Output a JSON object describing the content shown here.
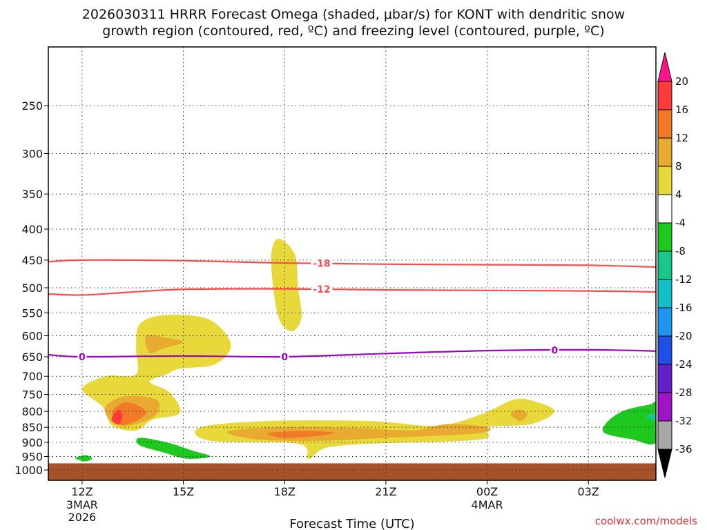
{
  "chart_data": {
    "type": "heatmap",
    "title_line1": "2026030311 HRRR Forecast Omega (shaded, μbar/s) for KONT with dendritic snow",
    "title_line2": "growth region (contoured, red, ºC) and freezing level (contoured, purple, ºC)",
    "xlabel": "Forecast Time (UTC)",
    "credit": "coolwx.com/models",
    "x_ticks": [
      {
        "hour": 0,
        "label": "12Z",
        "sub1": "3MAR",
        "sub2": "2026"
      },
      {
        "hour": 3,
        "label": "15Z",
        "sub1": "",
        "sub2": ""
      },
      {
        "hour": 6,
        "label": "18Z",
        "sub1": "",
        "sub2": ""
      },
      {
        "hour": 9,
        "label": "21Z",
        "sub1": "",
        "sub2": ""
      },
      {
        "hour": 12,
        "label": "00Z",
        "sub1": "4MAR",
        "sub2": ""
      },
      {
        "hour": 15,
        "label": "03Z",
        "sub1": "",
        "sub2": ""
      }
    ],
    "x_range_hours": [
      -1,
      17
    ],
    "y_ticks": [
      250,
      300,
      350,
      400,
      450,
      500,
      550,
      600,
      650,
      700,
      750,
      800,
      850,
      900,
      950,
      1000
    ],
    "y_range_hpa": [
      200,
      1040
    ],
    "y_scale": "log-pressure",
    "grid": true,
    "ground_from_hpa": 975,
    "colorbar": {
      "placement": "right",
      "labels": [
        "20",
        "16",
        "12",
        "8",
        "4",
        "-4",
        "-8",
        "-12",
        "-16",
        "-20",
        "-24",
        "-28",
        "-32",
        "-36"
      ],
      "colors": [
        "#ff3a3a",
        "#f07a26",
        "#e8aa30",
        "#e8d83a",
        "#ffffff",
        "#1ec81e",
        "#18c88a",
        "#14c0c8",
        "#1e96f0",
        "#1e50e6",
        "#6420c8",
        "#a014c8",
        "#a8a8a8"
      ],
      "top_arrow_color": "#ff148c",
      "bottom_arrow_color": "#000000"
    },
    "omega_regions": [
      {
        "level": 4,
        "color": "#e8d83a",
        "points": [
          [
            5.6,
            450
          ],
          [
            5.8,
            415
          ],
          [
            6.3,
            440
          ],
          [
            6.4,
            500
          ],
          [
            6.5,
            560
          ],
          [
            6.2,
            590
          ],
          [
            5.8,
            555
          ]
        ]
      },
      {
        "level": 4,
        "color": "#e8d83a",
        "points": [
          [
            1.7,
            575
          ],
          [
            2.4,
            555
          ],
          [
            3.6,
            560
          ],
          [
            4.2,
            590
          ],
          [
            4.4,
            630
          ],
          [
            3.9,
            670
          ],
          [
            2.9,
            680
          ],
          [
            2.5,
            695
          ],
          [
            2.0,
            715
          ],
          [
            2.6,
            745
          ],
          [
            2.9,
            805
          ],
          [
            2.1,
            825
          ],
          [
            1.6,
            860
          ],
          [
            0.9,
            845
          ],
          [
            0.6,
            785
          ],
          [
            0,
            735
          ],
          [
            0.7,
            700
          ],
          [
            1.6,
            695
          ],
          [
            1.6,
            630
          ]
        ]
      },
      {
        "level": 8,
        "color": "#e8aa30",
        "points": [
          [
            1.9,
            600
          ],
          [
            2.5,
            605
          ],
          [
            3.0,
            615
          ],
          [
            2.4,
            630
          ],
          [
            2.0,
            640
          ]
        ]
      },
      {
        "level": 8,
        "color": "#e8aa30",
        "points": [
          [
            0.7,
            785
          ],
          [
            1.3,
            755
          ],
          [
            2.2,
            765
          ],
          [
            2.2,
            810
          ],
          [
            1.6,
            840
          ],
          [
            1.1,
            845
          ],
          [
            0.8,
            825
          ]
        ]
      },
      {
        "level": 12,
        "color": "#f07a26",
        "points": [
          [
            0.9,
            805
          ],
          [
            1.2,
            775
          ],
          [
            1.6,
            780
          ],
          [
            1.9,
            805
          ],
          [
            1.5,
            835
          ],
          [
            1.1,
            840
          ]
        ]
      },
      {
        "level": 16,
        "color": "#ff3a3a",
        "points": [
          [
            0.9,
            815
          ],
          [
            1.1,
            795
          ],
          [
            1.2,
            815
          ],
          [
            1.1,
            840
          ],
          [
            0.9,
            830
          ]
        ]
      },
      {
        "level": 4,
        "color": "#e8d83a",
        "points": [
          [
            3.5,
            850
          ],
          [
            5.5,
            830
          ],
          [
            8.5,
            830
          ],
          [
            10.5,
            845
          ],
          [
            11.8,
            810
          ],
          [
            12.8,
            765
          ],
          [
            13.4,
            770
          ],
          [
            14,
            800
          ],
          [
            13.3,
            840
          ],
          [
            12.0,
            850
          ],
          [
            11.8,
            890
          ],
          [
            8.5,
            905
          ],
          [
            7.2,
            920
          ],
          [
            6.7,
            960
          ],
          [
            6.4,
            905
          ],
          [
            3.8,
            895
          ]
        ]
      },
      {
        "level": 8,
        "color": "#e8aa30",
        "points": [
          [
            4.3,
            865
          ],
          [
            5.6,
            850
          ],
          [
            8.0,
            852
          ],
          [
            9.8,
            860
          ],
          [
            10.8,
            840
          ],
          [
            12.0,
            850
          ],
          [
            11.7,
            870
          ],
          [
            9.0,
            885
          ],
          [
            7.0,
            895
          ],
          [
            5.2,
            890
          ]
        ]
      },
      {
        "level": 12,
        "color": "#f07a26",
        "points": [
          [
            5.5,
            870
          ],
          [
            6.5,
            862
          ],
          [
            7.5,
            868
          ],
          [
            6.8,
            880
          ],
          [
            6.0,
            885
          ]
        ]
      },
      {
        "level": 8,
        "color": "#e8aa30",
        "points": [
          [
            12.7,
            805
          ],
          [
            13.0,
            795
          ],
          [
            13.2,
            810
          ],
          [
            13.0,
            830
          ],
          [
            12.8,
            820
          ]
        ]
      },
      {
        "level": -4,
        "color": "#1ec81e",
        "points": [
          [
            1.7,
            885
          ],
          [
            2.5,
            900
          ],
          [
            3.3,
            930
          ],
          [
            3.8,
            950
          ],
          [
            3.1,
            958
          ],
          [
            2.4,
            935
          ],
          [
            1.7,
            910
          ]
        ]
      },
      {
        "level": -4,
        "color": "#1ec81e",
        "points": [
          [
            -0.2,
            955
          ],
          [
            0.1,
            945
          ],
          [
            0.3,
            957
          ],
          [
            0.1,
            968
          ],
          [
            -0.1,
            962
          ]
        ]
      },
      {
        "level": -4,
        "color": "#1ec81e",
        "points": [
          [
            15.5,
            840
          ],
          [
            16.0,
            800
          ],
          [
            16.8,
            780
          ],
          [
            17.0,
            780
          ],
          [
            17.0,
            900
          ],
          [
            16.3,
            890
          ],
          [
            15.5,
            870
          ]
        ]
      },
      {
        "level": -8,
        "color": "#18c88a",
        "points": [
          [
            16.7,
            815
          ],
          [
            17.0,
            805
          ],
          [
            17.0,
            830
          ],
          [
            16.8,
            822
          ]
        ]
      }
    ],
    "contours": [
      {
        "value": -18,
        "label": "-18",
        "color": "#ff4a4a",
        "label_hour": 7.1,
        "points": [
          [
            -1,
            453
          ],
          [
            0,
            450
          ],
          [
            3,
            451
          ],
          [
            6,
            455
          ],
          [
            9,
            457
          ],
          [
            12,
            458
          ],
          [
            15,
            459
          ],
          [
            17,
            462
          ]
        ]
      },
      {
        "value": -12,
        "label": "-12",
        "color": "#ff4a4a",
        "label_hour": 7.1,
        "points": [
          [
            -1,
            512
          ],
          [
            0,
            514
          ],
          [
            1.5,
            508
          ],
          [
            3,
            503
          ],
          [
            6,
            502
          ],
          [
            9,
            504
          ],
          [
            12,
            505
          ],
          [
            15,
            506
          ],
          [
            17,
            508
          ]
        ]
      },
      {
        "value": 0,
        "label": "0",
        "color": "#a000c8",
        "label_hour": 0,
        "label_hours": [
          0,
          6,
          14
        ],
        "points": [
          [
            -1,
            645
          ],
          [
            0,
            650
          ],
          [
            3,
            648
          ],
          [
            6,
            650
          ],
          [
            9,
            642
          ],
          [
            12,
            635
          ],
          [
            15,
            633
          ],
          [
            17,
            636
          ]
        ]
      }
    ]
  }
}
